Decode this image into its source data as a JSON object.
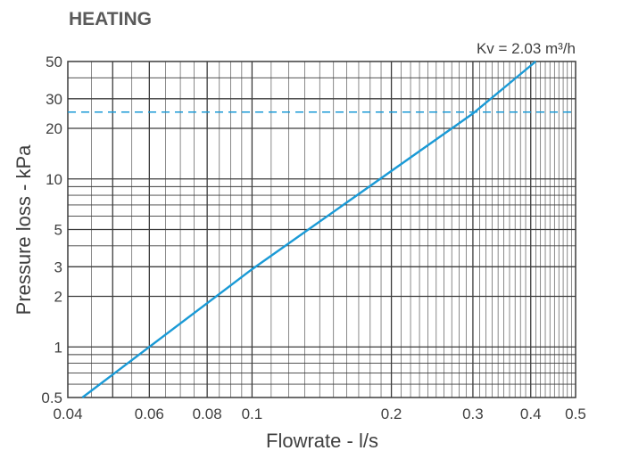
{
  "chart_data": {
    "type": "line",
    "title": "HEATING",
    "xlabel": "Flowrate - l/s",
    "ylabel": "Pressure loss - kPa",
    "x_scale": "log",
    "y_scale": "log",
    "xlim": [
      0.04,
      0.5
    ],
    "ylim": [
      0.5,
      50
    ],
    "x_ticks": [
      {
        "value": 0.04,
        "label": "0.04"
      },
      {
        "value": 0.06,
        "label": "0.06"
      },
      {
        "value": 0.08,
        "label": "0.08"
      },
      {
        "value": 0.1,
        "label": "0.1"
      },
      {
        "value": 0.2,
        "label": "0.2"
      },
      {
        "value": 0.3,
        "label": "0.3"
      },
      {
        "value": 0.4,
        "label": "0.4"
      },
      {
        "value": 0.5,
        "label": "0.5"
      }
    ],
    "y_ticks": [
      {
        "value": 0.5,
        "label": "0.5"
      },
      {
        "value": 1,
        "label": "1"
      },
      {
        "value": 2,
        "label": "2"
      },
      {
        "value": 3,
        "label": "3"
      },
      {
        "value": 5,
        "label": "5"
      },
      {
        "value": 10,
        "label": "10"
      },
      {
        "value": 20,
        "label": "20"
      },
      {
        "value": 30,
        "label": "30"
      },
      {
        "value": 50,
        "label": "50"
      }
    ],
    "grid": true,
    "series": [
      {
        "color": "#1a9ad6",
        "points": [
          [
            0.043,
            0.5
          ],
          [
            0.1,
            2.9
          ],
          [
            0.3,
            24.5
          ],
          [
            0.41,
            50
          ]
        ]
      }
    ],
    "reference_lines": [
      {
        "y": 25,
        "style": "dashed",
        "color": "#1a9ad6"
      }
    ],
    "annotations": [
      {
        "text": "Kv = 2.03 m³/h",
        "position": "top-right"
      }
    ]
  },
  "colors": {
    "line": "#1a9ad6",
    "grid": "#3c3c3c",
    "text": "#404040",
    "title": "#5a5a5a"
  }
}
